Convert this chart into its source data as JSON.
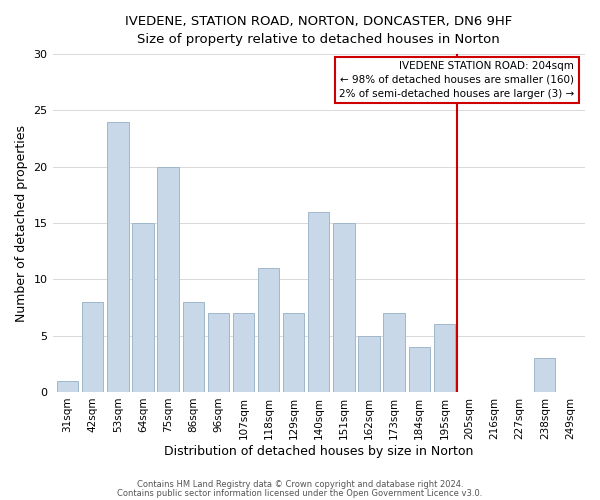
{
  "title": "IVEDENE, STATION ROAD, NORTON, DONCASTER, DN6 9HF",
  "subtitle": "Size of property relative to detached houses in Norton",
  "xlabel": "Distribution of detached houses by size in Norton",
  "ylabel": "Number of detached properties",
  "categories": [
    "31sqm",
    "42sqm",
    "53sqm",
    "64sqm",
    "75sqm",
    "86sqm",
    "96sqm",
    "107sqm",
    "118sqm",
    "129sqm",
    "140sqm",
    "151sqm",
    "162sqm",
    "173sqm",
    "184sqm",
    "195sqm",
    "205sqm",
    "216sqm",
    "227sqm",
    "238sqm",
    "249sqm"
  ],
  "values": [
    1,
    8,
    24,
    15,
    20,
    8,
    7,
    7,
    11,
    7,
    16,
    15,
    5,
    7,
    4,
    6,
    0,
    0,
    0,
    3,
    0
  ],
  "bar_color": "#c8d8e8",
  "bar_edge_color": "#a0b8cc",
  "ylim": [
    0,
    30
  ],
  "yticks": [
    0,
    5,
    10,
    15,
    20,
    25,
    30
  ],
  "vline_x": 15.5,
  "vline_color": "#cc0000",
  "annotation_title": "IVEDENE STATION ROAD: 204sqm",
  "annotation_line1": "← 98% of detached houses are smaller (160)",
  "annotation_line2": "2% of semi-detached houses are larger (3) →",
  "annotation_box_color": "#ffffff",
  "annotation_box_edge_color": "#cc0000",
  "footer1": "Contains HM Land Registry data © Crown copyright and database right 2024.",
  "footer2": "Contains public sector information licensed under the Open Government Licence v3.0.",
  "background_color": "#ffffff",
  "grid_color": "#d8d8d8"
}
